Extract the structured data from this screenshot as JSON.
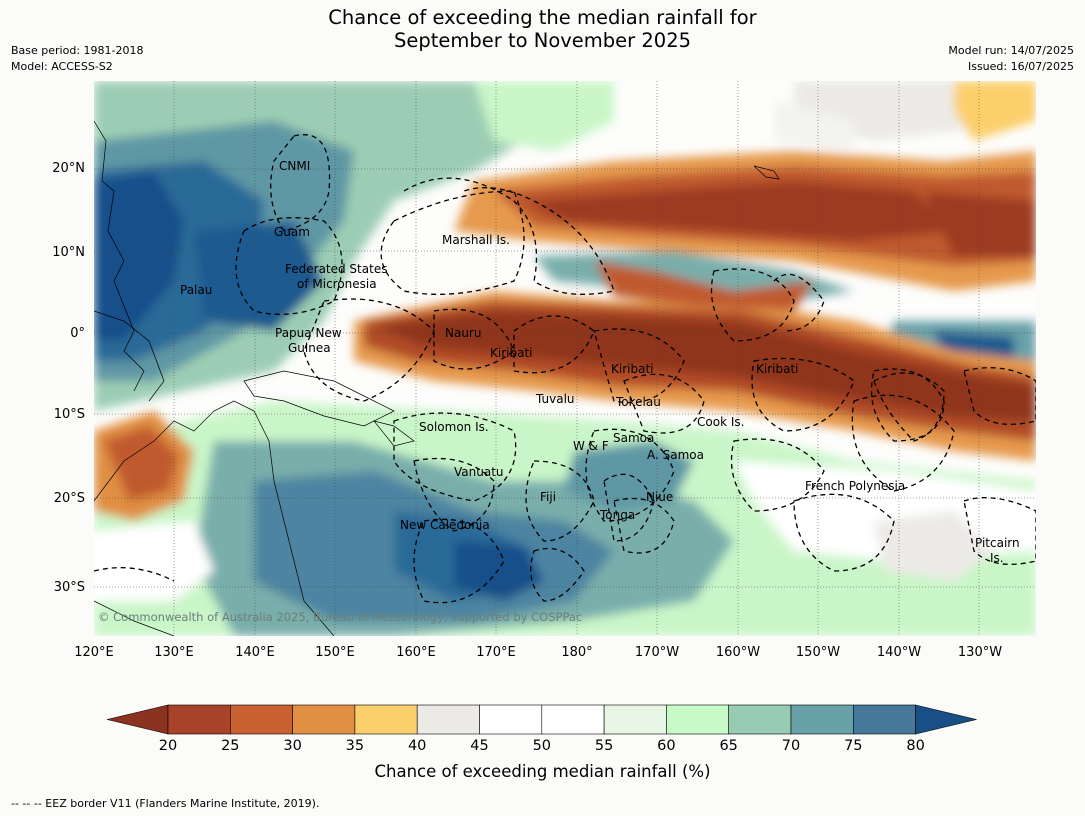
{
  "header": {
    "title_line1": "Chance of exceeding the median rainfall for",
    "title_line2": "September to November 2025",
    "base_period": "Base period: 1981-2018",
    "model": "Model: ACCESS-S2",
    "model_run": "Model run: 14/07/2025",
    "issued": "Issued: 16/07/2025"
  },
  "map": {
    "latitude_ticks": [
      "20°N",
      "10°N",
      "0°",
      "10°S",
      "20°S",
      "30°S"
    ],
    "longitude_ticks": [
      "120°E",
      "130°E",
      "140°E",
      "150°E",
      "160°E",
      "170°E",
      "180°",
      "170°W",
      "160°W",
      "150°W",
      "140°W",
      "130°W"
    ],
    "region_labels": [
      {
        "id": "cnmi",
        "text": "CNMI"
      },
      {
        "id": "guam",
        "text": "Guam"
      },
      {
        "id": "marshall",
        "text": "Marshall Is."
      },
      {
        "id": "fsm1",
        "text": "Federated States"
      },
      {
        "id": "fsm2",
        "text": "of Micronesia"
      },
      {
        "id": "palau",
        "text": "Palau"
      },
      {
        "id": "png1",
        "text": "Papua New"
      },
      {
        "id": "png2",
        "text": "Guinea"
      },
      {
        "id": "nauru",
        "text": "Nauru"
      },
      {
        "id": "kiribati_w",
        "text": "Kiribati"
      },
      {
        "id": "kiribati_c",
        "text": "Kiribati"
      },
      {
        "id": "kiribati_e",
        "text": "Kiribati"
      },
      {
        "id": "tuvalu",
        "text": "Tuvalu"
      },
      {
        "id": "tokelau",
        "text": "Tokelau"
      },
      {
        "id": "cook",
        "text": "Cook Is."
      },
      {
        "id": "solomon",
        "text": "Solomon Is."
      },
      {
        "id": "wf",
        "text": "W & F"
      },
      {
        "id": "samoa",
        "text": "Samoa"
      },
      {
        "id": "asamoa",
        "text": "A. Samoa"
      },
      {
        "id": "vanuatu",
        "text": "Vanuatu"
      },
      {
        "id": "fiji",
        "text": "Fiji"
      },
      {
        "id": "niue",
        "text": "Niue"
      },
      {
        "id": "tonga",
        "text": "Tonga"
      },
      {
        "id": "frpoly",
        "text": "French Polynesia"
      },
      {
        "id": "pitcairn1",
        "text": "Pitcairn"
      },
      {
        "id": "pitcairn2",
        "text": "Is."
      },
      {
        "id": "newcal",
        "text": "New Caledonia"
      }
    ],
    "copyright": "© Commonwealth of Australia 2025, Bureau of Meteorology, supported by COSPPac"
  },
  "colorbar": {
    "ticks": [
      "20",
      "25",
      "30",
      "35",
      "40",
      "45",
      "50",
      "55",
      "60",
      "65",
      "70",
      "75",
      "80"
    ],
    "colors": [
      "#a8432a",
      "#c8612f",
      "#e08f43",
      "#fbcf6b",
      "#eceae6",
      "#ffffff",
      "#ffffff",
      "#e9f6e6",
      "#c8fac8",
      "#97cbb3",
      "#69a1a9",
      "#46789a"
    ],
    "under_color": "#8c3220",
    "over_color": "#184f86",
    "label": "Chance of exceeding median rainfall (%)"
  },
  "footer": {
    "legend": "--  --  -- EEZ border V11 (Flanders Marine Institute, 2019)."
  }
}
